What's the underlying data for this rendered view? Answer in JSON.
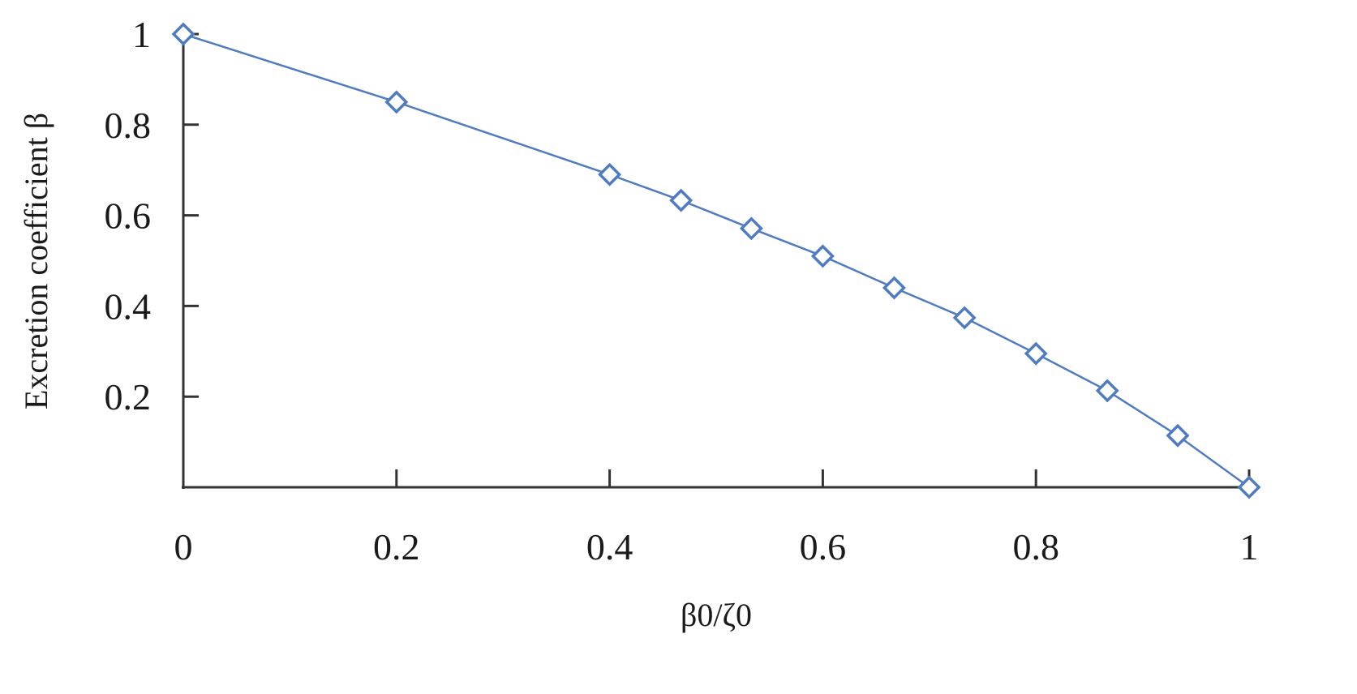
{
  "chart_data": {
    "type": "line",
    "title": "",
    "xlabel": "β0/ζ0",
    "ylabel": "Excretion coefficient β",
    "xlim": [
      0,
      1
    ],
    "ylim": [
      0,
      1
    ],
    "grid": false,
    "legend": null,
    "x_ticks": [
      0,
      0.2,
      0.4,
      0.6,
      0.8,
      1
    ],
    "x_tick_labels": [
      "0",
      "0.2",
      "0.4",
      "0.6",
      "0.8",
      "1"
    ],
    "y_ticks": [
      0.2,
      0.4,
      0.6,
      0.8,
      1
    ],
    "y_tick_labels": [
      "0.2",
      "0.4",
      "0.6",
      "0.8",
      "1"
    ],
    "series": [
      {
        "name": "Excretion coefficient β",
        "color": "#4f7cc0",
        "marker": "open-diamond",
        "x": [
          0,
          0.2,
          0.4,
          0.467,
          0.533,
          0.6,
          0.667,
          0.733,
          0.8,
          0.867,
          0.933,
          1
        ],
        "values": [
          1.0,
          0.85,
          0.69,
          0.633,
          0.571,
          0.51,
          0.44,
          0.374,
          0.295,
          0.213,
          0.114,
          0.0
        ]
      }
    ]
  },
  "labels": {
    "xlabel": "β0/ζ0",
    "ylabel": "Excretion coefficient β"
  },
  "colors": {
    "series": "#4f7cc0",
    "axis": "#333333",
    "text": "#1a1a1a",
    "background": "#ffffff"
  }
}
